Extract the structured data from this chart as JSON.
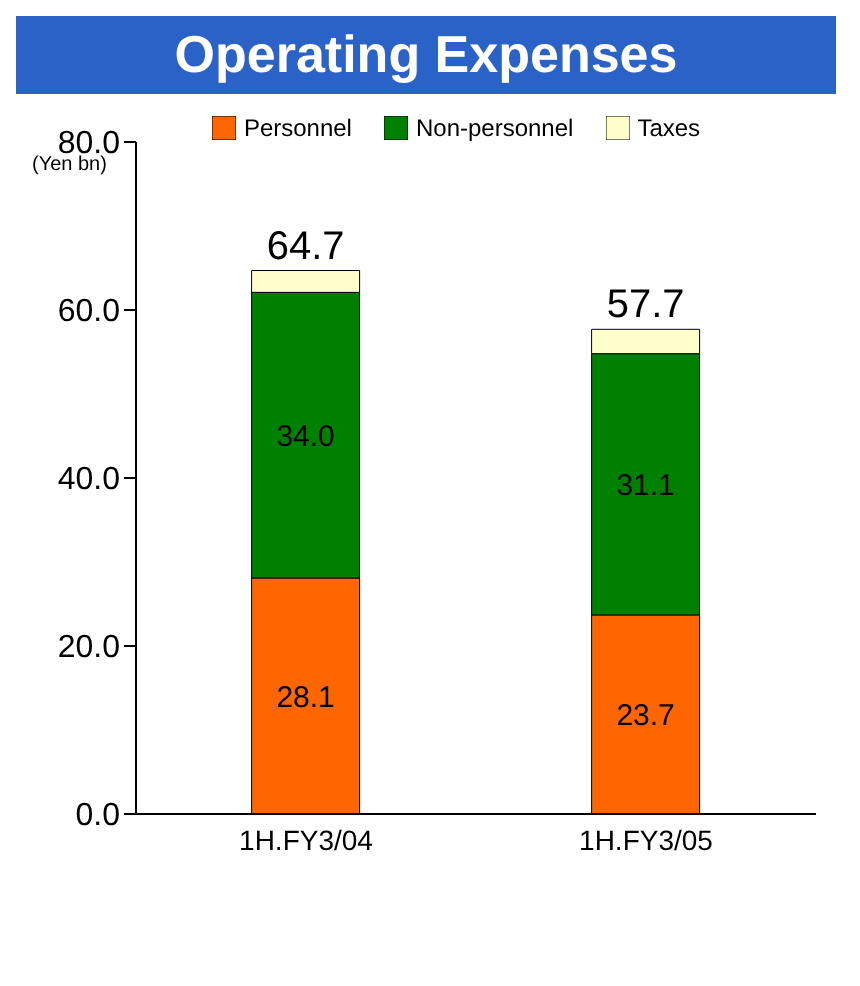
{
  "chart_data": {
    "type": "bar",
    "title": "Operating Expenses",
    "ylabel": "(Yen bn)",
    "categories": [
      "1H.FY3/04",
      "1H.FY3/05"
    ],
    "stacked": true,
    "series": [
      {
        "name": "Personnel",
        "color": "#ff6600",
        "values": [
          28.1,
          23.7
        ],
        "value_labels": [
          "28.1",
          "23.7"
        ]
      },
      {
        "name": "Non-personnel",
        "color": "#008000",
        "values": [
          34.0,
          31.1
        ],
        "value_labels": [
          "34.0",
          "31.1"
        ]
      },
      {
        "name": "Taxes",
        "color": "#ffffcc",
        "values": [
          2.6,
          2.9
        ],
        "value_labels": [
          null,
          null
        ]
      }
    ],
    "totals": [
      "64.7",
      "57.7"
    ],
    "ylim": [
      0,
      80
    ],
    "yticks": [
      {
        "value": 0,
        "label": "0.0"
      },
      {
        "value": 20,
        "label": "20.0"
      },
      {
        "value": 40,
        "label": "40.0"
      },
      {
        "value": 60,
        "label": "60.0"
      },
      {
        "value": 80,
        "label": "80.0"
      }
    ],
    "legend": "top",
    "grid": false
  }
}
